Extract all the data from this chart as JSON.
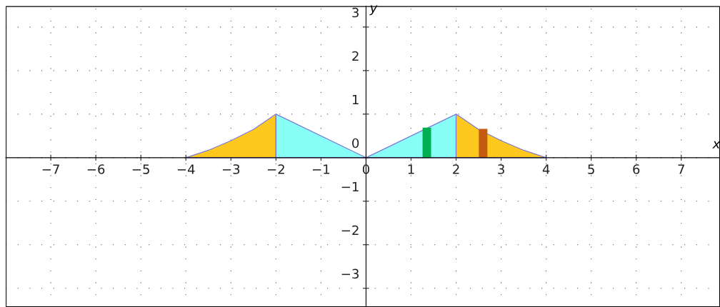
{
  "chart_data": {
    "type": "area",
    "xlabel": "x",
    "ylabel": "y",
    "series": [
      {
        "color": "#ffc81e",
        "x": [
          -4,
          -3.5,
          -3,
          -2.5,
          -2
        ],
        "values": [
          0,
          0.17,
          0.39,
          0.65,
          1
        ]
      },
      {
        "color": "#88fff6",
        "x": [
          -2,
          0
        ],
        "values": [
          1,
          0
        ]
      },
      {
        "color": "#88fff6",
        "x": [
          0,
          2
        ],
        "values": [
          0,
          1
        ]
      },
      {
        "color": "#ffc81e",
        "x": [
          2,
          2.5,
          3,
          3.5,
          4
        ],
        "values": [
          1,
          0.65,
          0.39,
          0.17,
          0
        ]
      },
      {
        "type": "bar",
        "color": "#00b050",
        "x": [
          1.35
        ],
        "values": [
          0.69
        ]
      },
      {
        "type": "bar",
        "color": "#c55a11",
        "x": [
          2.6
        ],
        "values": [
          0.66
        ]
      }
    ],
    "xlim": [
      -8.0,
      7.86
    ],
    "ylim": [
      -3.43,
      3.48
    ],
    "xticks": [
      {
        "value": -7,
        "label": "−7"
      },
      {
        "value": -6,
        "label": "−6"
      },
      {
        "value": -5,
        "label": "−5"
      },
      {
        "value": -4,
        "label": "−4"
      },
      {
        "value": -3,
        "label": "−3"
      },
      {
        "value": -2,
        "label": "−2"
      },
      {
        "value": -1,
        "label": "−1"
      },
      0,
      1,
      2,
      3,
      4,
      5,
      6,
      7
    ],
    "yticks": [
      {
        "value": -3,
        "label": "−3"
      },
      {
        "value": -2,
        "label": "−2"
      },
      {
        "value": -1,
        "label": "−1"
      },
      0,
      1,
      2,
      3
    ],
    "grid": true
  }
}
